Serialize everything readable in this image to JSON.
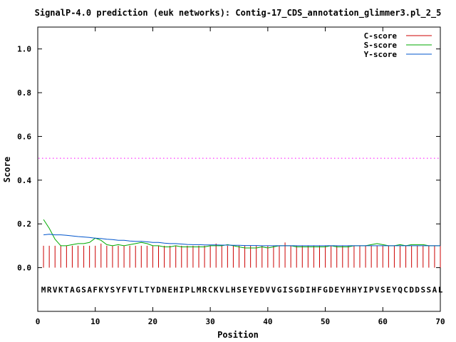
{
  "chart_data": {
    "type": "line",
    "title": "SignalP-4.0 prediction (euk networks): Contig-17_CDS_annotation_glimmer3.pl_2_5",
    "xlabel": "Position",
    "ylabel": "Score",
    "xlim": [
      0,
      70
    ],
    "ylim": [
      -0.2,
      1.1
    ],
    "x_ticks": [
      0,
      10,
      20,
      30,
      40,
      50,
      60,
      70
    ],
    "y_ticks": [
      0.0,
      0.2,
      0.4,
      0.6,
      0.8,
      1.0
    ],
    "x_tick_labels": [
      "0",
      "10",
      "20",
      "30",
      "40",
      "50",
      "60",
      "70"
    ],
    "y_tick_labels": [
      "0.0",
      "0.2",
      "0.4",
      "0.6",
      "0.8",
      "1.0"
    ],
    "legend_position": "top-right",
    "threshold": 0.5,
    "threshold_color": "#ff00ff",
    "sequence": "MRVKTAGSAFKYSYFVTLTYDNEHIPLMRCKVLHSEYEDVVGISGDIHFGDEYHHYIPVSEYQCDDSSAL",
    "sequence_y": -0.1,
    "series": [
      {
        "name": "C-score",
        "color": "#cc0000",
        "style": "impulse",
        "x": [
          1,
          2,
          3,
          4,
          5,
          6,
          7,
          8,
          9,
          10,
          11,
          12,
          13,
          14,
          15,
          16,
          17,
          18,
          19,
          20,
          21,
          22,
          23,
          24,
          25,
          26,
          27,
          28,
          29,
          30,
          31,
          32,
          33,
          34,
          35,
          36,
          37,
          38,
          39,
          40,
          41,
          42,
          43,
          44,
          45,
          46,
          47,
          48,
          49,
          50,
          51,
          52,
          53,
          54,
          55,
          56,
          57,
          58,
          59,
          60,
          61,
          62,
          63,
          64,
          65,
          66,
          67,
          68,
          69,
          70
        ],
        "values": [
          0.1,
          0.1,
          0.1,
          0.1,
          0.1,
          0.1,
          0.1,
          0.1,
          0.1,
          0.1,
          0.11,
          0.1,
          0.1,
          0.1,
          0.1,
          0.1,
          0.1,
          0.1,
          0.1,
          0.1,
          0.1,
          0.1,
          0.1,
          0.1,
          0.1,
          0.1,
          0.1,
          0.1,
          0.1,
          0.1,
          0.11,
          0.1,
          0.1,
          0.1,
          0.1,
          0.1,
          0.1,
          0.1,
          0.1,
          0.1,
          0.1,
          0.1,
          0.115,
          0.1,
          0.1,
          0.1,
          0.1,
          0.1,
          0.1,
          0.1,
          0.1,
          0.1,
          0.1,
          0.1,
          0.1,
          0.1,
          0.1,
          0.1,
          0.1,
          0.1,
          0.1,
          0.1,
          0.1,
          0.1,
          0.1,
          0.1,
          0.1,
          0.1,
          0.1,
          0.1
        ]
      },
      {
        "name": "S-score",
        "color": "#00aa00",
        "style": "line",
        "x": [
          1,
          2,
          3,
          4,
          5,
          6,
          7,
          8,
          9,
          10,
          11,
          12,
          13,
          14,
          15,
          16,
          17,
          18,
          19,
          20,
          21,
          22,
          23,
          24,
          25,
          26,
          27,
          28,
          29,
          30,
          31,
          32,
          33,
          34,
          35,
          36,
          37,
          38,
          39,
          40,
          41,
          42,
          43,
          44,
          45,
          46,
          47,
          48,
          49,
          50,
          51,
          52,
          53,
          54,
          55,
          56,
          57,
          58,
          59,
          60,
          61,
          62,
          63,
          64,
          65,
          66,
          67,
          68,
          69,
          70
        ],
        "values": [
          0.22,
          0.18,
          0.13,
          0.1,
          0.1,
          0.105,
          0.11,
          0.11,
          0.115,
          0.135,
          0.125,
          0.105,
          0.1,
          0.105,
          0.1,
          0.105,
          0.11,
          0.115,
          0.11,
          0.1,
          0.1,
          0.095,
          0.095,
          0.1,
          0.095,
          0.095,
          0.095,
          0.095,
          0.095,
          0.1,
          0.1,
          0.1,
          0.105,
          0.1,
          0.095,
          0.09,
          0.09,
          0.09,
          0.095,
          0.09,
          0.095,
          0.1,
          0.1,
          0.1,
          0.095,
          0.095,
          0.095,
          0.095,
          0.095,
          0.095,
          0.1,
          0.095,
          0.095,
          0.095,
          0.1,
          0.1,
          0.1,
          0.105,
          0.11,
          0.105,
          0.1,
          0.1,
          0.105,
          0.1,
          0.105,
          0.105,
          0.105,
          0.1,
          0.1,
          0.1
        ]
      },
      {
        "name": "Y-score",
        "color": "#0055cc",
        "style": "line",
        "x": [
          1,
          2,
          3,
          4,
          5,
          6,
          7,
          8,
          9,
          10,
          11,
          12,
          13,
          14,
          15,
          16,
          17,
          18,
          19,
          20,
          21,
          22,
          23,
          24,
          25,
          26,
          27,
          28,
          29,
          30,
          31,
          32,
          33,
          34,
          35,
          36,
          37,
          38,
          39,
          40,
          41,
          42,
          43,
          44,
          45,
          46,
          47,
          48,
          49,
          50,
          51,
          52,
          53,
          54,
          55,
          56,
          57,
          58,
          59,
          60,
          61,
          62,
          63,
          64,
          65,
          66,
          67,
          68,
          69,
          70
        ],
        "values": [
          0.15,
          0.153,
          0.15,
          0.15,
          0.148,
          0.145,
          0.142,
          0.14,
          0.138,
          0.135,
          0.133,
          0.13,
          0.128,
          0.125,
          0.125,
          0.122,
          0.12,
          0.12,
          0.118,
          0.115,
          0.115,
          0.112,
          0.11,
          0.11,
          0.108,
          0.106,
          0.105,
          0.105,
          0.104,
          0.104,
          0.104,
          0.103,
          0.103,
          0.102,
          0.102,
          0.101,
          0.101,
          0.101,
          0.1,
          0.1,
          0.1,
          0.1,
          0.1,
          0.1,
          0.1,
          0.1,
          0.1,
          0.1,
          0.1,
          0.1,
          0.1,
          0.1,
          0.1,
          0.1,
          0.1,
          0.1,
          0.1,
          0.1,
          0.1,
          0.1,
          0.1,
          0.1,
          0.1,
          0.1,
          0.1,
          0.1,
          0.1,
          0.1,
          0.1,
          0.1
        ]
      }
    ]
  }
}
